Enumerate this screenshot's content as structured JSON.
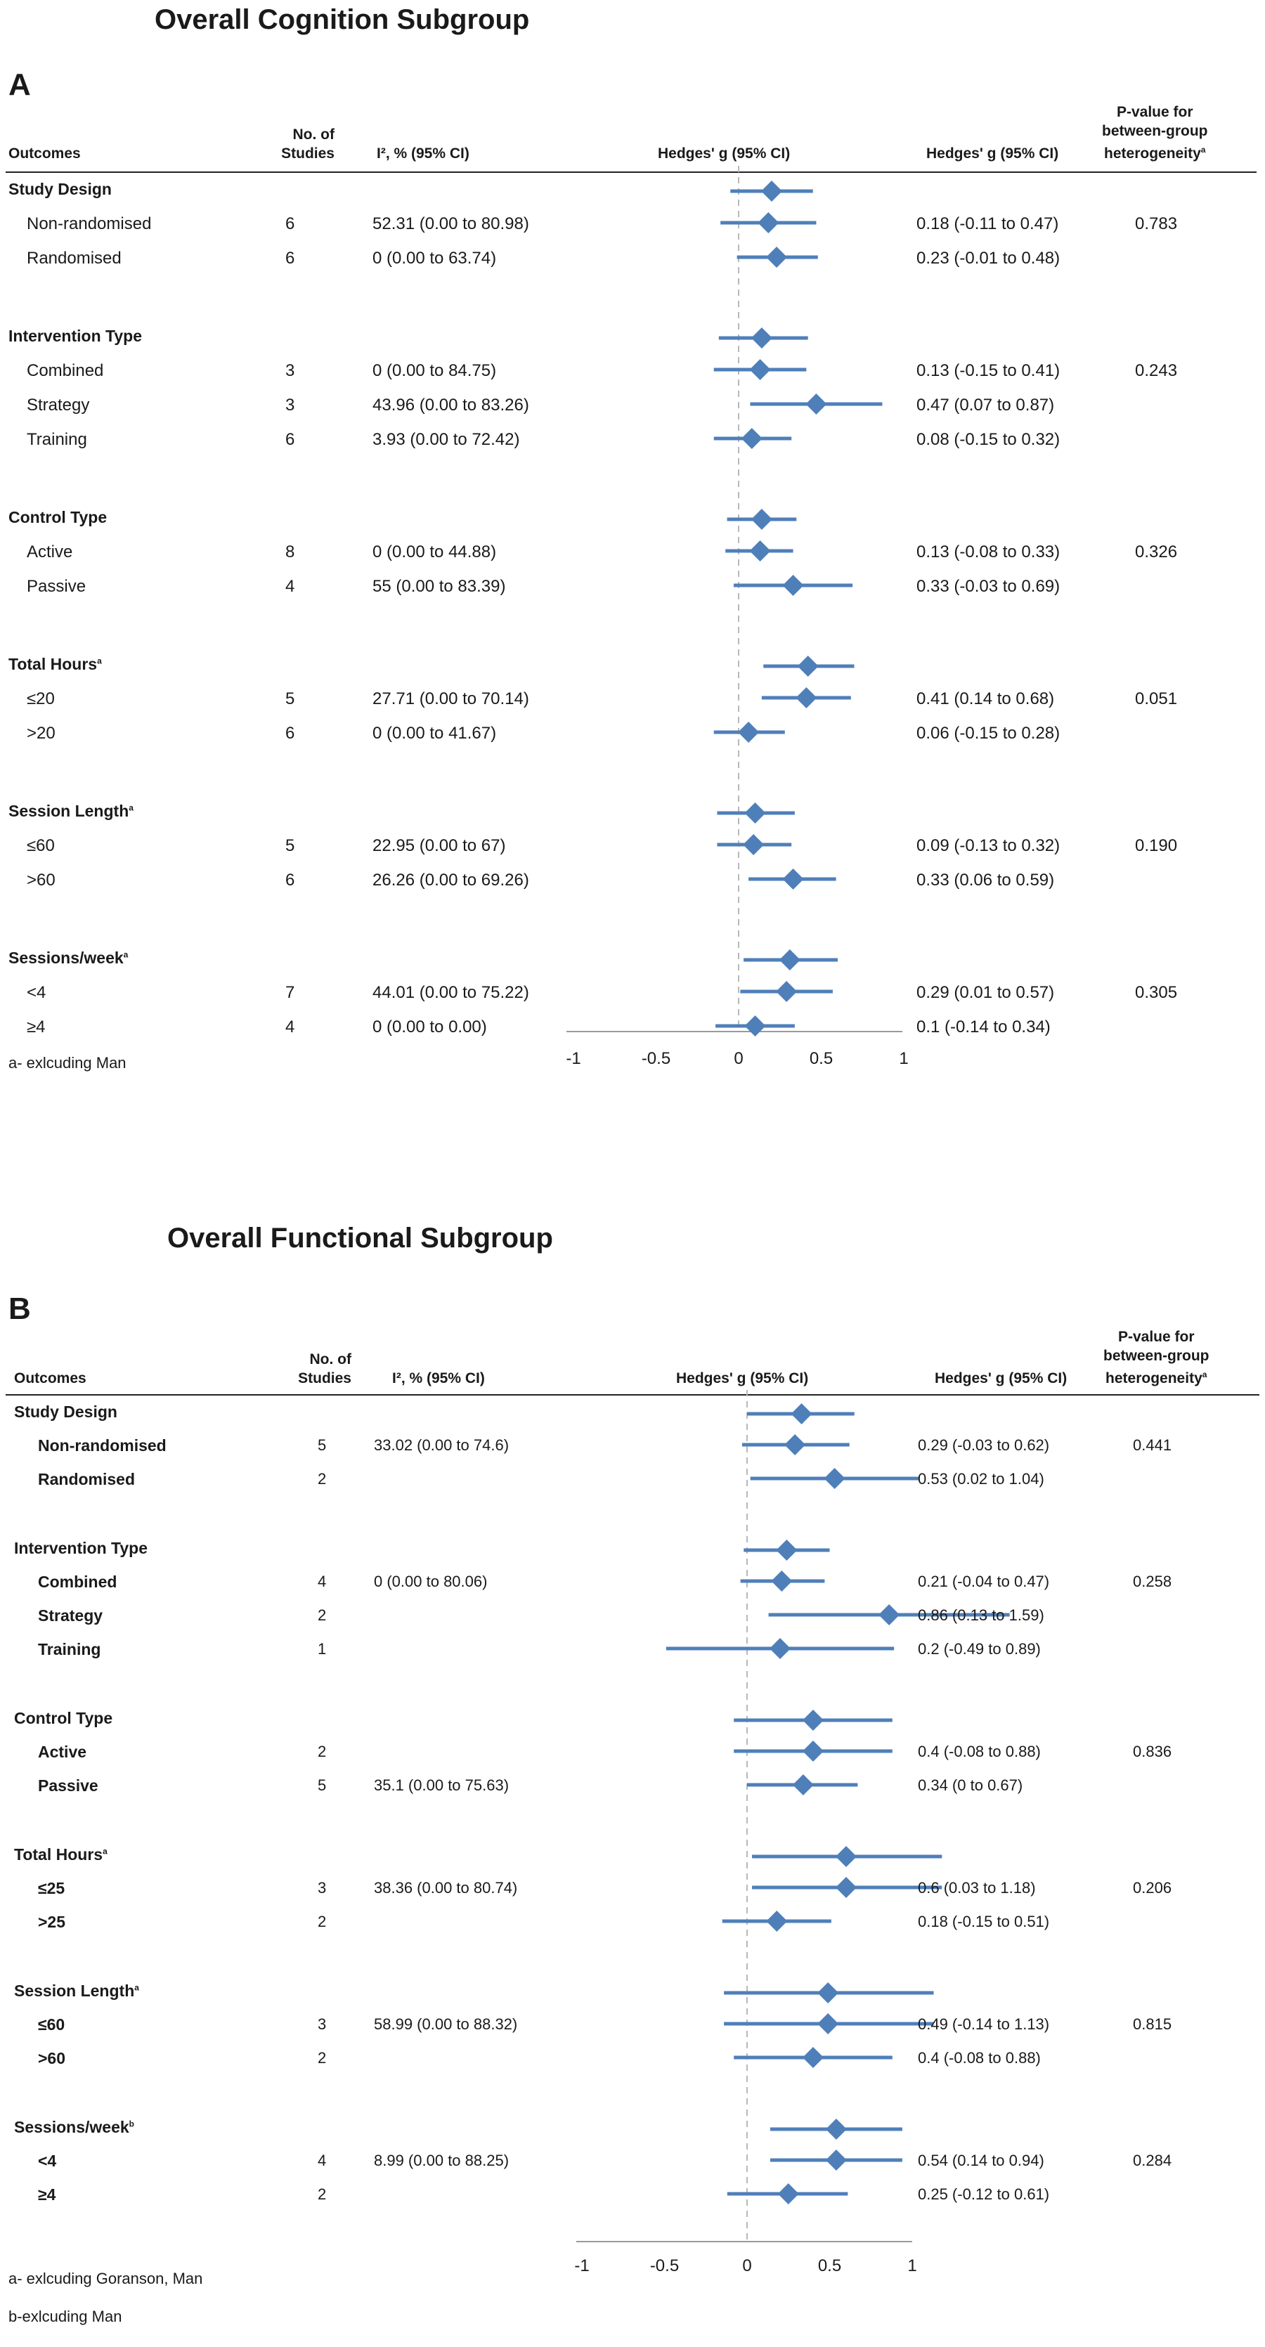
{
  "chart_data": [
    {
      "type": "forest",
      "panel_label": "A",
      "title": "Overall Cognition Subgroup",
      "columns": {
        "outcomes": "Outcomes",
        "studies": [
          "No. of",
          "Studies"
        ],
        "i2": "I², % (95% CI)",
        "plot": "Hedges' g (95% CI)",
        "g": "Hedges' g (95% CI)",
        "pvalue": [
          "P-value for",
          "between-group",
          "heterogeneity"
        ],
        "pvalue_sup": "a"
      },
      "xlim": [
        -1,
        1
      ],
      "xticks": [
        "-1",
        "-0.5",
        "0",
        "0.5",
        "1"
      ],
      "footnotes": [
        "a- exlcuding Man"
      ],
      "groups": [
        {
          "name": "Study Design",
          "sup": "",
          "estimate": 0.2,
          "lower": -0.05,
          "upper": 0.45,
          "rows": [
            {
              "label": "Non-randomised",
              "n": "6",
              "i2": "52.31 (0.00 to 80.98)",
              "g": 0.18,
              "lower": -0.11,
              "upper": 0.47,
              "g_text": "0.18 (-0.11 to 0.47)",
              "p": "0.783"
            },
            {
              "label": "Randomised",
              "n": "6",
              "i2": "0 (0.00 to 63.74)",
              "g": 0.23,
              "lower": -0.01,
              "upper": 0.48,
              "g_text": "0.23 (-0.01 to 0.48)",
              "p": ""
            }
          ]
        },
        {
          "name": "Intervention Type",
          "sup": "",
          "estimate": 0.14,
          "lower": -0.12,
          "upper": 0.42,
          "rows": [
            {
              "label": "Combined",
              "n": "3",
              "i2": "0 (0.00 to 84.75)",
              "g": 0.13,
              "lower": -0.15,
              "upper": 0.41,
              "g_text": "0.13 (-0.15 to 0.41)",
              "p": "0.243"
            },
            {
              "label": "Strategy",
              "n": "3",
              "i2": "43.96 (0.00 to 83.26)",
              "g": 0.47,
              "lower": 0.07,
              "upper": 0.87,
              "g_text": "0.47 (0.07 to 0.87)",
              "p": ""
            },
            {
              "label": "Training",
              "n": "6",
              "i2": "3.93 (0.00 to 72.42)",
              "g": 0.08,
              "lower": -0.15,
              "upper": 0.32,
              "g_text": "0.08 (-0.15 to 0.32)",
              "p": ""
            }
          ]
        },
        {
          "name": "Control Type",
          "sup": "",
          "estimate": 0.14,
          "lower": -0.07,
          "upper": 0.35,
          "rows": [
            {
              "label": "Active",
              "n": "8",
              "i2": "0 (0.00 to 44.88)",
              "g": 0.13,
              "lower": -0.08,
              "upper": 0.33,
              "g_text": "0.13 (-0.08 to 0.33)",
              "p": "0.326"
            },
            {
              "label": "Passive",
              "n": "4",
              "i2": "55 (0.00 to 83.39)",
              "g": 0.33,
              "lower": -0.03,
              "upper": 0.69,
              "g_text": "0.33 (-0.03 to 0.69)",
              "p": ""
            }
          ]
        },
        {
          "name": "Total Hours",
          "sup": "a",
          "estimate": 0.42,
          "lower": 0.15,
          "upper": 0.7,
          "rows": [
            {
              "label": "≤20",
              "n": "5",
              "i2": "27.71 (0.00 to 70.14)",
              "g": 0.41,
              "lower": 0.14,
              "upper": 0.68,
              "g_text": "0.41 (0.14 to 0.68)",
              "p": "0.051"
            },
            {
              "label": ">20",
              "n": "6",
              "i2": "0 (0.00 to 41.67)",
              "g": 0.06,
              "lower": -0.15,
              "upper": 0.28,
              "g_text": "0.06 (-0.15 to 0.28)",
              "p": ""
            }
          ]
        },
        {
          "name": "Session Length",
          "sup": "a",
          "estimate": 0.1,
          "lower": -0.13,
          "upper": 0.34,
          "rows": [
            {
              "label": "≤60",
              "n": "5",
              "i2": "22.95 (0.00 to 67)",
              "g": 0.09,
              "lower": -0.13,
              "upper": 0.32,
              "g_text": "0.09 (-0.13 to 0.32)",
              "p": "0.190"
            },
            {
              "label": ">60",
              "n": "6",
              "i2": "26.26 (0.00 to 69.26)",
              "g": 0.33,
              "lower": 0.06,
              "upper": 0.59,
              "g_text": "0.33 (0.06 to 0.59)",
              "p": ""
            }
          ]
        },
        {
          "name": "Sessions/week",
          "sup": "a",
          "estimate": 0.31,
          "lower": 0.03,
          "upper": 0.6,
          "rows": [
            {
              "label": "<4",
              "n": "7",
              "i2": "44.01 (0.00 to 75.22)",
              "g": 0.29,
              "lower": 0.01,
              "upper": 0.57,
              "g_text": "0.29 (0.01 to 0.57)",
              "p": "0.305"
            },
            {
              "label": "≥4",
              "n": "4",
              "i2": "0 (0.00 to 0.00)",
              "g": 0.1,
              "lower": -0.14,
              "upper": 0.34,
              "g_text": "0.1 (-0.14 to 0.34)",
              "p": ""
            }
          ]
        }
      ]
    },
    {
      "type": "forest",
      "panel_label": "B",
      "title": "Overall Functional Subgroup",
      "columns": {
        "outcomes": "Outcomes",
        "studies": [
          "No. of",
          "Studies"
        ],
        "i2": "I², % (95% CI)",
        "plot": "Hedges' g (95% CI)",
        "g": "Hedges' g (95% CI)",
        "pvalue": [
          "P-value for",
          "between-group",
          "heterogeneity"
        ],
        "pvalue_sup": "a"
      },
      "xlim": [
        -1,
        1
      ],
      "xticks": [
        "-1",
        "-0.5",
        "0",
        "0.5",
        "1"
      ],
      "footnotes": [
        "a- exlcuding Goranson, Man",
        "b-exlcuding Man"
      ],
      "groups": [
        {
          "name": "Study Design",
          "sup": "",
          "estimate": 0.33,
          "lower": 0.0,
          "upper": 0.65,
          "rows": [
            {
              "label": "Non-randomised",
              "n": "5",
              "i2": "33.02 (0.00 to 74.6)",
              "g": 0.29,
              "lower": -0.03,
              "upper": 0.62,
              "g_text": "0.29 (-0.03 to 0.62)",
              "p": "0.441"
            },
            {
              "label": "Randomised",
              "n": "2",
              "i2": "",
              "g": 0.53,
              "lower": 0.02,
              "upper": 1.04,
              "g_text": "0.53 (0.02 to 1.04)",
              "p": ""
            }
          ]
        },
        {
          "name": "Intervention Type",
          "sup": "",
          "estimate": 0.24,
          "lower": -0.02,
          "upper": 0.5,
          "rows": [
            {
              "label": "Combined",
              "n": "4",
              "i2": "0 (0.00 to 80.06)",
              "g": 0.21,
              "lower": -0.04,
              "upper": 0.47,
              "g_text": "0.21 (-0.04 to 0.47)",
              "p": "0.258"
            },
            {
              "label": "Strategy",
              "n": "2",
              "i2": "",
              "g": 0.86,
              "lower": 0.13,
              "upper": 1.59,
              "g_text": "0.86 (0.13 to 1.59)",
              "p": ""
            },
            {
              "label": "Training",
              "n": "1",
              "i2": "",
              "g": 0.2,
              "lower": -0.49,
              "upper": 0.89,
              "g_text": "0.2 (-0.49 to 0.89)",
              "p": ""
            }
          ]
        },
        {
          "name": "Control Type",
          "sup": "",
          "estimate": 0.4,
          "lower": -0.08,
          "upper": 0.88,
          "rows": [
            {
              "label": "Active",
              "n": "2",
              "i2": "",
              "g": 0.4,
              "lower": -0.08,
              "upper": 0.88,
              "g_text": "0.4 (-0.08 to 0.88)",
              "p": "0.836"
            },
            {
              "label": "Passive",
              "n": "5",
              "i2": "35.1 (0.00 to 75.63)",
              "g": 0.34,
              "lower": 0.0,
              "upper": 0.67,
              "g_text": "0.34 (0 to 0.67)",
              "p": ""
            }
          ]
        },
        {
          "name": "Total Hours",
          "sup": "a",
          "estimate": 0.6,
          "lower": 0.03,
          "upper": 1.18,
          "rows": [
            {
              "label": "≤25",
              "n": "3",
              "i2": "38.36 (0.00 to 80.74)",
              "g": 0.6,
              "lower": 0.03,
              "upper": 1.18,
              "g_text": "0.6 (0.03 to 1.18)",
              "p": "0.206"
            },
            {
              "label": ">25",
              "n": "2",
              "i2": "",
              "g": 0.18,
              "lower": -0.15,
              "upper": 0.51,
              "g_text": "0.18 (-0.15 to 0.51)",
              "p": ""
            }
          ]
        },
        {
          "name": "Session Length",
          "sup": "a",
          "estimate": 0.49,
          "lower": -0.14,
          "upper": 1.13,
          "rows": [
            {
              "label": "≤60",
              "n": "3",
              "i2": "58.99 (0.00 to 88.32)",
              "g": 0.49,
              "lower": -0.14,
              "upper": 1.13,
              "g_text": "0.49 (-0.14 to 1.13)",
              "p": "0.815"
            },
            {
              "label": ">60",
              "n": "2",
              "i2": "",
              "g": 0.4,
              "lower": -0.08,
              "upper": 0.88,
              "g_text": "0.4 (-0.08 to 0.88)",
              "p": ""
            }
          ]
        },
        {
          "name": "Sessions/week",
          "sup": "b",
          "estimate": 0.54,
          "lower": 0.14,
          "upper": 0.94,
          "rows": [
            {
              "label": "<4",
              "n": "4",
              "i2": "8.99 (0.00 to 88.25)",
              "g": 0.54,
              "lower": 0.14,
              "upper": 0.94,
              "g_text": "0.54 (0.14 to 0.94)",
              "p": "0.284"
            },
            {
              "label": "≥4",
              "n": "2",
              "i2": "",
              "g": 0.25,
              "lower": -0.12,
              "upper": 0.61,
              "g_text": "0.25 (-0.12 to 0.61)",
              "p": ""
            }
          ]
        }
      ]
    }
  ],
  "colors": {
    "marker": "#4f7fb9",
    "axis": "#9a9a9a",
    "zero_line": "#b8b8b8",
    "text": "#1a1a1a"
  }
}
